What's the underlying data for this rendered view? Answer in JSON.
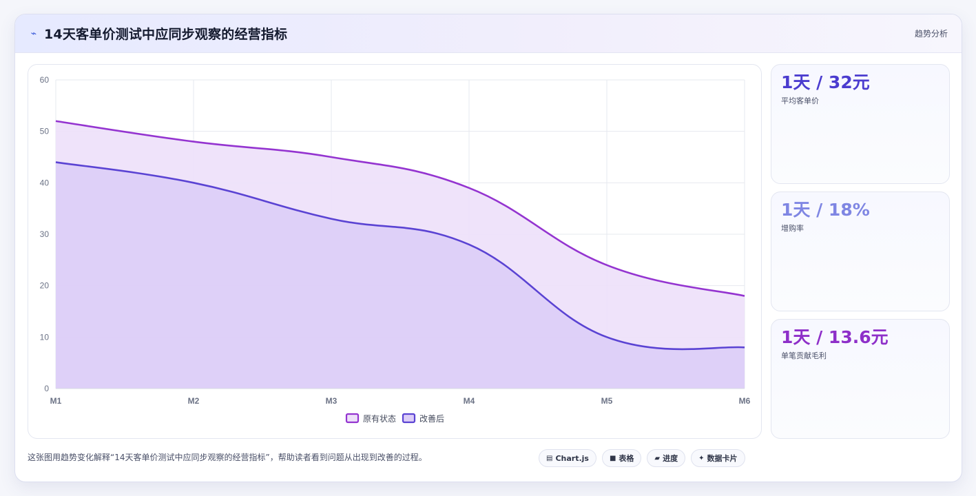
{
  "header": {
    "icon": "trend-icon",
    "title": "14天客单价测试中应同步观察的经营指标",
    "right_link": "趋势分析"
  },
  "chart_data": {
    "type": "area",
    "categories": [
      "M1",
      "M2",
      "M3",
      "M4",
      "M5",
      "M6"
    ],
    "ylim": [
      0,
      60
    ],
    "yticks": [
      0,
      10,
      20,
      30,
      40,
      50,
      60
    ],
    "grid": true,
    "legend_position": "bottom",
    "series": [
      {
        "name": "原有状态",
        "values": [
          52,
          48,
          45,
          39,
          24,
          18
        ],
        "color": "#9434d0",
        "fill": "#ede0f9"
      },
      {
        "name": "改善后",
        "values": [
          44,
          40,
          33,
          28,
          10,
          8
        ],
        "color": "#5a43d3",
        "fill": "#dccdf7"
      }
    ]
  },
  "kpis": [
    {
      "value": "1天 / 32元",
      "label": "平均客单价",
      "color": "#4b3ccf"
    },
    {
      "value": "1天 / 18%",
      "label": "增购率",
      "color": "#7f86e3"
    },
    {
      "value": "1天 / 13.6元",
      "label": "单笔贡献毛利",
      "color": "#8e2fc9"
    }
  ],
  "footer": {
    "description": "这张图用趋势变化解释“14天客单价测试中应同步观察的经营指标”，帮助读者看到问题从出现到改善的过程。",
    "chips": [
      {
        "icon": "chart-icon",
        "glyph": "▤",
        "label": "Chart.js"
      },
      {
        "icon": "table-icon",
        "glyph": "■",
        "label": "表格"
      },
      {
        "icon": "progress-icon",
        "glyph": "▰",
        "label": "进度"
      },
      {
        "icon": "sparkle-icon",
        "glyph": "✦",
        "label": "数据卡片"
      }
    ]
  }
}
